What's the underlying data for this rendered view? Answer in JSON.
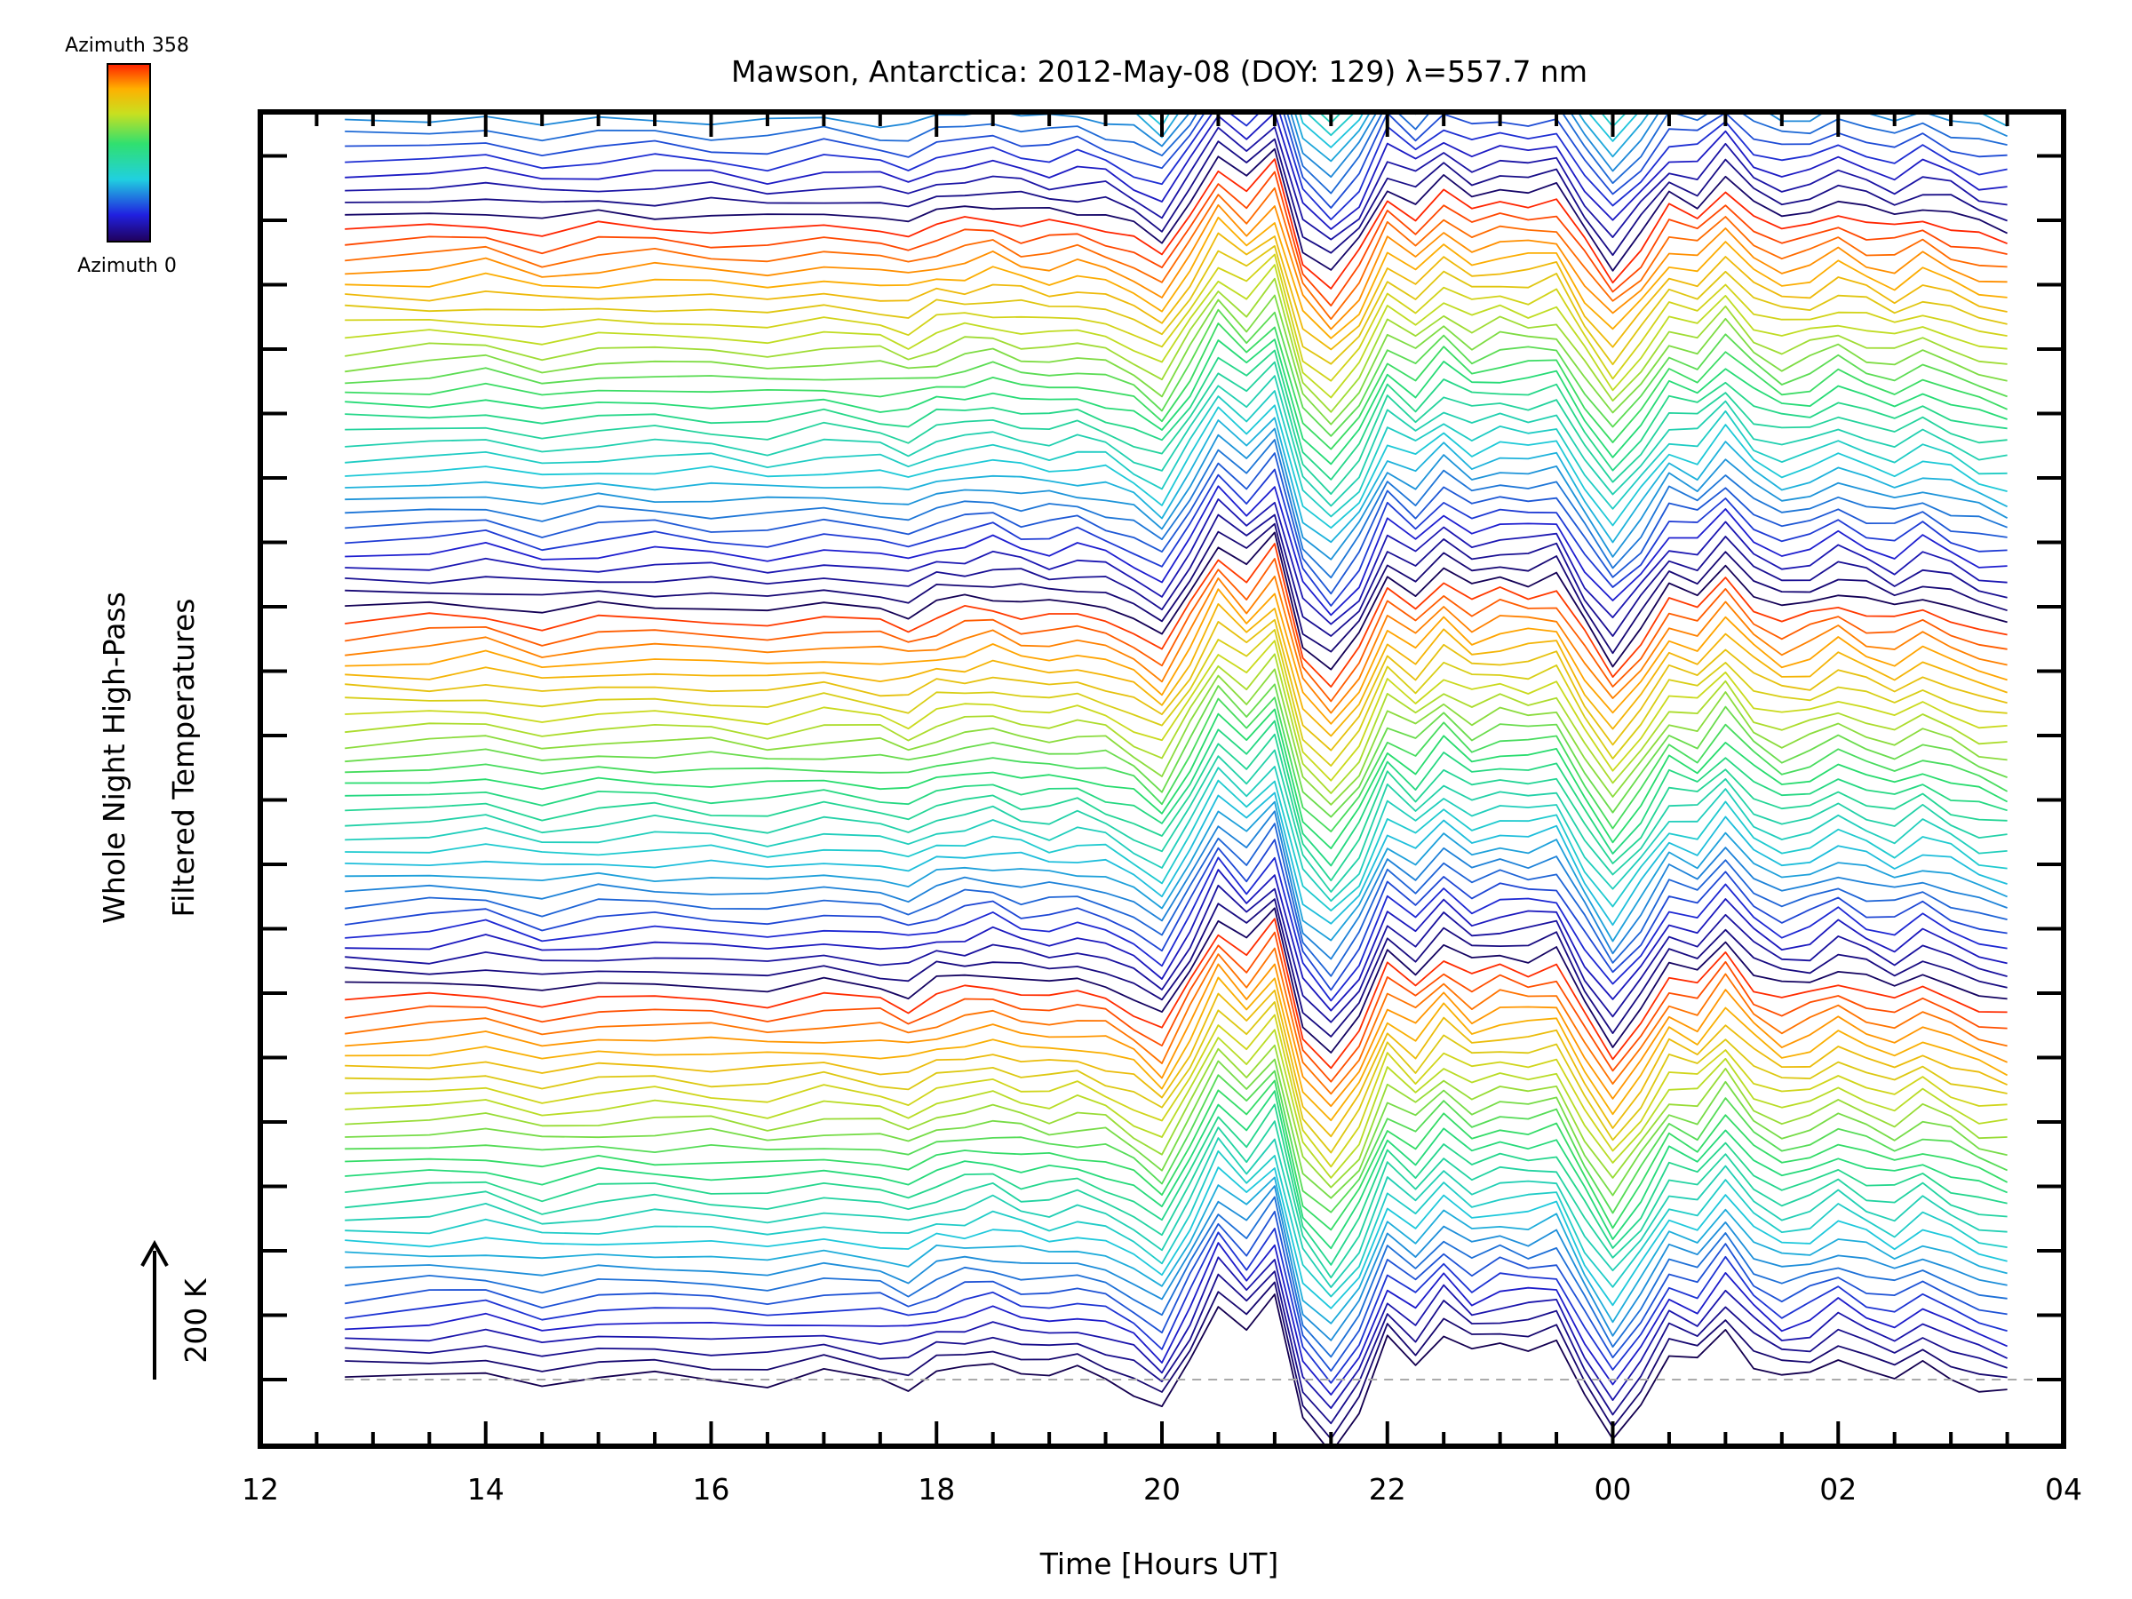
{
  "chart_data": {
    "type": "line",
    "title": "Mawson, Antarctica: 2012-May-08 (DOY: 129) λ=557.7 nm",
    "xlabel": "Time [Hours UT]",
    "ylabel_line1": "Whole Night High-Pass",
    "ylabel_line2": "Filtered Temperatures",
    "x_tick_labels": [
      "12",
      "14",
      "16",
      "18",
      "20",
      "22",
      "00",
      "02",
      "04"
    ],
    "x_unit": "hours UT (continuing past midnight)",
    "xlim": [
      12,
      28
    ],
    "data_x_range": [
      12.75,
      27.5
    ],
    "scale_bar": {
      "label": "200 K",
      "kelvin": 200
    },
    "colorbar": {
      "top_label": "Azimuth 358",
      "bottom_label": "Azimuth 0",
      "min": 0,
      "max": 358,
      "colormap": "rainbow"
    },
    "series_count": 142,
    "azimuth_cycles": 5,
    "series_offset_kelvin": 21,
    "series_note": "One stacked trace per sky azimuth; traces cycle through azimuth 0–358 five times, each offset vertically",
    "baseline_profile": {
      "x": [
        12.75,
        13.5,
        14.0,
        14.5,
        15.0,
        15.5,
        16.0,
        16.5,
        17.0,
        17.5,
        17.75,
        18.0,
        18.25,
        18.5,
        18.75,
        19.0,
        19.25,
        19.5,
        19.75,
        20.0,
        20.25,
        20.5,
        20.75,
        21.0,
        21.25,
        21.5,
        21.75,
        22.0,
        22.25,
        22.5,
        22.75,
        23.0,
        23.25,
        23.5,
        23.75,
        24.0,
        24.25,
        24.5,
        24.75,
        25.0,
        25.25,
        25.5,
        25.75,
        26.0,
        26.25,
        26.5,
        26.75,
        27.0,
        27.25,
        27.5
      ],
      "y": [
        0,
        5,
        12,
        -8,
        4,
        6,
        2,
        -5,
        8,
        0,
        -10,
        10,
        18,
        25,
        12,
        8,
        14,
        4,
        -18,
        -50,
        30,
        120,
        75,
        130,
        -60,
        -110,
        -50,
        60,
        25,
        75,
        40,
        55,
        50,
        60,
        -25,
        -95,
        -35,
        40,
        25,
        80,
        25,
        0,
        10,
        35,
        15,
        0,
        25,
        5,
        -15,
        -25
      ]
    },
    "colors": {
      "axis": "#000000",
      "baseline_dash": "#aaaaaa",
      "background": "#ffffff"
    }
  }
}
